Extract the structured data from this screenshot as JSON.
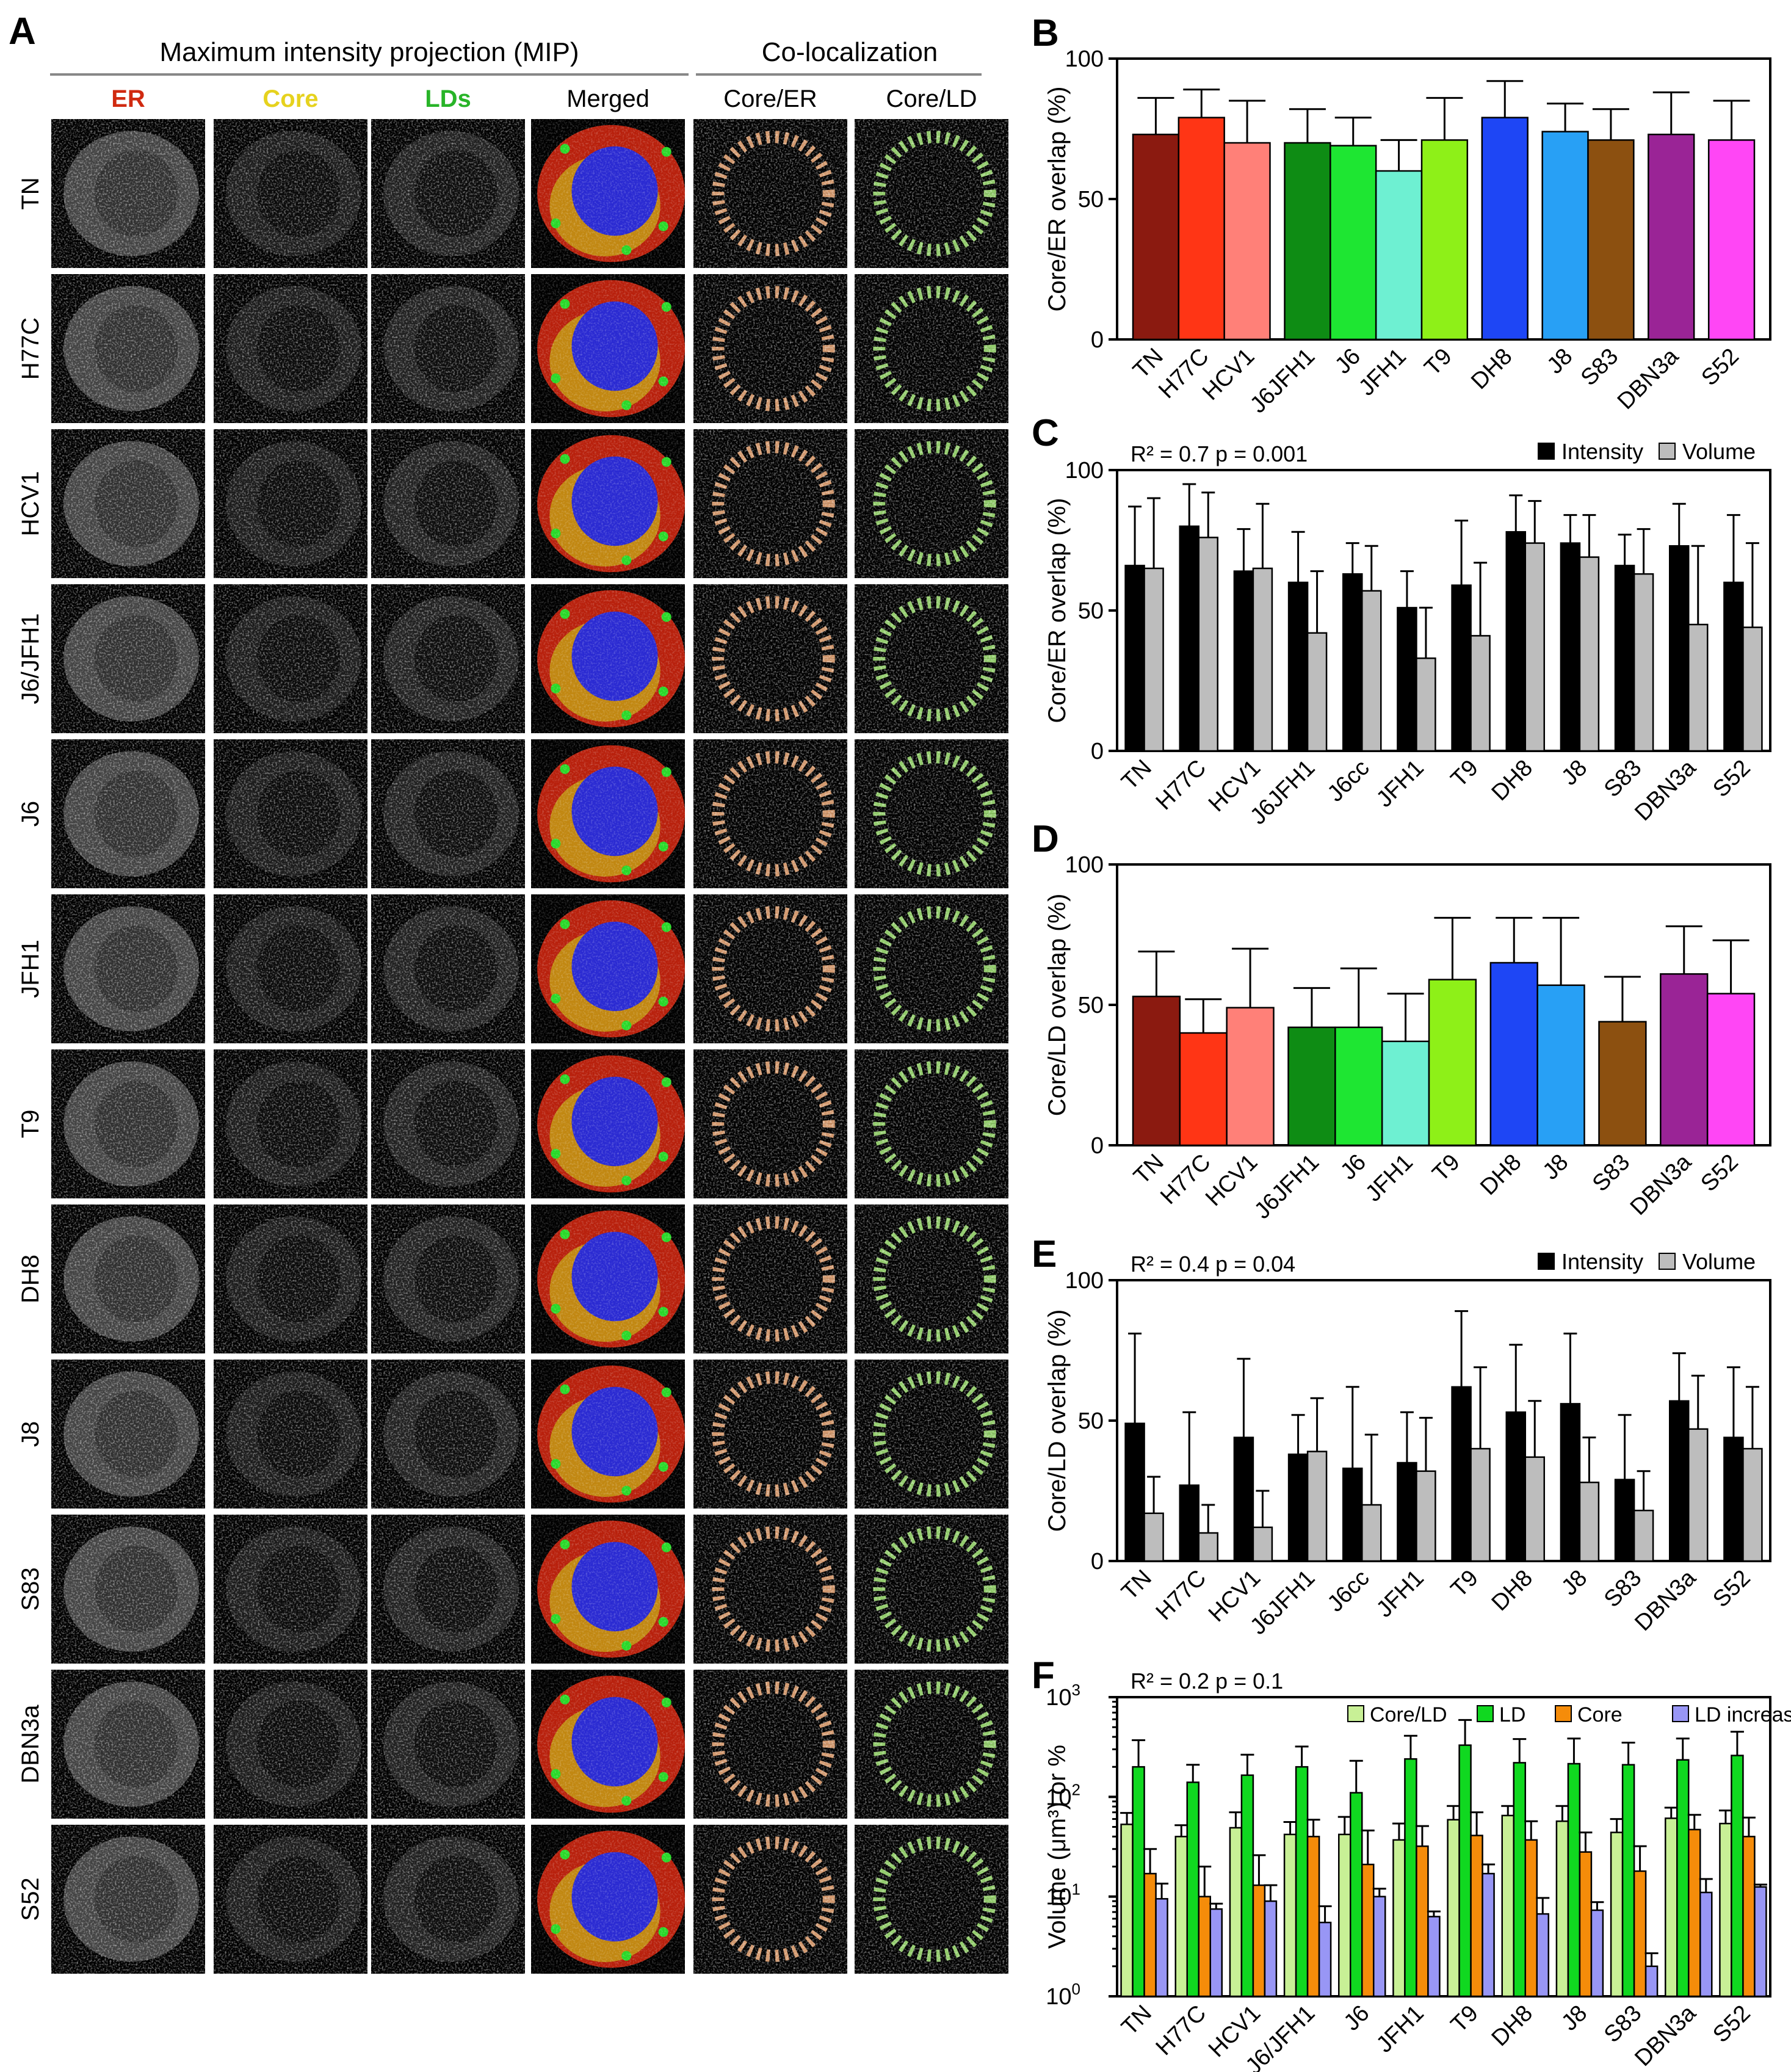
{
  "panelA": {
    "letter": "A",
    "header_mip": "Maximum intensity projection (MIP)",
    "header_coloc": "Co-localization",
    "channels": [
      "ER",
      "Core",
      "LDs",
      "Merged",
      "Core/ER",
      "Core/LD"
    ],
    "channel_colors": [
      "#d02a10",
      "#e6d21e",
      "#28b428",
      "#000000",
      "#000000",
      "#000000"
    ],
    "strains": [
      "TN",
      "H77C",
      "HCV1",
      "J6/JFH1",
      "J6",
      "JFH1",
      "T9",
      "DH8",
      "J8",
      "S83",
      "DBN3a",
      "S52"
    ]
  },
  "chart_data": [
    {
      "panel": "B",
      "type": "bar",
      "categories": [
        "TN",
        "H77C",
        "HCV1",
        "J6JFH1",
        "J6",
        "JFH1",
        "T9",
        "DH8",
        "J8",
        "S83",
        "DBN3a",
        "S52"
      ],
      "series": [
        {
          "values": [
            73,
            79,
            70,
            70,
            69,
            60,
            71,
            79,
            74,
            71,
            73,
            71
          ],
          "errors": [
            13,
            10,
            15,
            12,
            10,
            11,
            15,
            13,
            10,
            11,
            15,
            14
          ]
        }
      ],
      "colors": [
        "#8b1a10",
        "#ff3515",
        "#ff8078",
        "#0e8c14",
        "#1ee632",
        "#6ef0d2",
        "#8ef018",
        "#1e46f5",
        "#28a0f5",
        "#8c5010",
        "#9a2496",
        "#ff46f5"
      ],
      "ylabel": "Core/ER overlap (%)",
      "ylim": [
        0,
        100
      ],
      "yticks": [
        0,
        50,
        100
      ],
      "groups": [
        3,
        4,
        1,
        2,
        1,
        1
      ]
    },
    {
      "panel": "C",
      "type": "bar",
      "annotation": "R² = 0.7  p = 0.001",
      "categories": [
        "TN",
        "H77C",
        "HCV1",
        "J6JFH1",
        "J6cc",
        "JFH1",
        "T9",
        "DH8",
        "J8",
        "S83",
        "DBN3a",
        "S52"
      ],
      "series": [
        {
          "name": "Intensity",
          "color": "#000000",
          "values": [
            66,
            80,
            64,
            60,
            63,
            51,
            59,
            78,
            74,
            66,
            73,
            60
          ],
          "errors": [
            21,
            15,
            15,
            18,
            11,
            13,
            23,
            13,
            10,
            11,
            15,
            24
          ]
        },
        {
          "name": "Volume",
          "color": "#bdbdbd",
          "values": [
            65,
            76,
            65,
            42,
            57,
            33,
            41,
            74,
            69,
            63,
            45,
            44
          ],
          "errors": [
            25,
            16,
            23,
            22,
            16,
            18,
            26,
            15,
            15,
            16,
            28,
            30
          ]
        }
      ],
      "ylabel": "Core/ER overlap (%)",
      "ylim": [
        0,
        100
      ],
      "yticks": [
        0,
        50,
        100
      ],
      "legend": "top-right"
    },
    {
      "panel": "D",
      "type": "bar",
      "categories": [
        "TN",
        "H77C",
        "HCV1",
        "J6JFH1",
        "J6",
        "JFH1",
        "T9",
        "DH8",
        "J8",
        "S83",
        "DBN3a",
        "S52"
      ],
      "series": [
        {
          "values": [
            53,
            40,
            49,
            42,
            42,
            37,
            59,
            65,
            57,
            44,
            61,
            54
          ],
          "errors": [
            16,
            12,
            21,
            14,
            21,
            17,
            22,
            16,
            24,
            16,
            17,
            19
          ]
        }
      ],
      "colors": [
        "#8b1a10",
        "#ff3515",
        "#ff8078",
        "#0e8c14",
        "#1ee632",
        "#6ef0d2",
        "#8ef018",
        "#1e46f5",
        "#28a0f5",
        "#8c5010",
        "#9a2496",
        "#ff46f5"
      ],
      "ylabel": "Core/LD overlap (%)",
      "ylim": [
        0,
        100
      ],
      "yticks": [
        0,
        50,
        100
      ],
      "groups": [
        3,
        4,
        2,
        1,
        2
      ]
    },
    {
      "panel": "E",
      "type": "bar",
      "annotation": "R² = 0.4  p = 0.04",
      "categories": [
        "TN",
        "H77C",
        "HCV1",
        "J6JFH1",
        "J6cc",
        "JFH1",
        "T9",
        "DH8",
        "J8",
        "S83",
        "DBN3a",
        "S52"
      ],
      "series": [
        {
          "name": "Intensity",
          "color": "#000000",
          "values": [
            49,
            27,
            44,
            38,
            33,
            35,
            62,
            53,
            56,
            29,
            57,
            44
          ],
          "errors": [
            32,
            26,
            28,
            14,
            29,
            18,
            27,
            24,
            25,
            23,
            17,
            25
          ]
        },
        {
          "name": "Volume",
          "color": "#bdbdbd",
          "values": [
            17,
            10,
            12,
            39,
            20,
            32,
            40,
            37,
            28,
            18,
            47,
            40
          ],
          "errors": [
            13,
            10,
            13,
            19,
            25,
            19,
            29,
            20,
            16,
            14,
            19,
            22
          ]
        }
      ],
      "ylabel": "Core/LD overlap (%)",
      "ylim": [
        0,
        100
      ],
      "yticks": [
        0,
        50,
        100
      ],
      "legend": "top-right"
    },
    {
      "panel": "F",
      "type": "bar",
      "annotation": "R² = 0.2  p = 0.1",
      "scale": "log",
      "categories": [
        "TN",
        "H77C",
        "HCV1",
        "J6/JFH1",
        "J6",
        "JFH1",
        "T9",
        "DH8",
        "J8",
        "S83",
        "DBN3a",
        "S52"
      ],
      "series": [
        {
          "name": "Core/LD",
          "color": "#c8f096",
          "values": [
            53,
            40,
            49,
            42,
            42,
            37,
            59,
            65,
            57,
            44,
            61,
            54
          ],
          "errors": [
            16,
            12,
            21,
            14,
            21,
            17,
            22,
            16,
            24,
            16,
            17,
            19
          ]
        },
        {
          "name": "LD",
          "color": "#10d820",
          "values": [
            200,
            140,
            165,
            200,
            110,
            240,
            330,
            220,
            215,
            210,
            235,
            260
          ],
          "errors": [
            170,
            70,
            100,
            120,
            120,
            170,
            260,
            160,
            170,
            140,
            150,
            190
          ]
        },
        {
          "name": "Core",
          "color": "#f58c0a",
          "values": [
            17,
            10,
            13,
            40,
            21,
            32,
            41,
            37,
            28,
            18,
            47,
            40
          ],
          "errors": [
            13,
            10,
            13,
            19,
            25,
            19,
            29,
            20,
            16,
            14,
            19,
            22
          ]
        },
        {
          "name": "LD increase",
          "color": "#9896f5",
          "values": [
            9.5,
            7.5,
            9,
            5.5,
            10,
            6.3,
            17,
            6.7,
            7.3,
            2,
            11,
            12.5
          ],
          "errors": [
            4,
            1,
            4,
            2.5,
            2,
            0.8,
            4,
            3,
            1.5,
            0.7,
            4,
            0.7
          ]
        }
      ],
      "ylabel": "Volume (μm³) or %",
      "ylim": [
        1,
        1000
      ],
      "yticks": [
        1,
        10,
        100,
        1000
      ],
      "ytick_labels": [
        [
          "10",
          "0"
        ],
        [
          "10",
          "1"
        ],
        [
          "10",
          "2"
        ],
        [
          "10",
          "3"
        ]
      ],
      "legend": "top-right"
    }
  ]
}
